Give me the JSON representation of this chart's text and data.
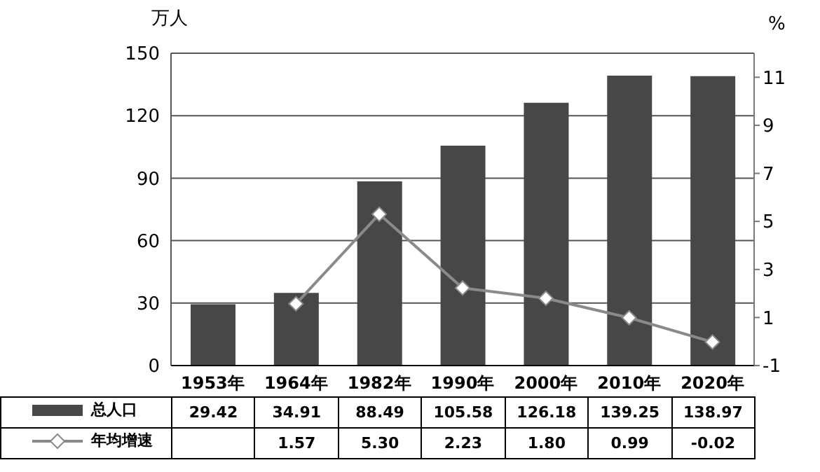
{
  "chart_data": {
    "type": "bar",
    "categories": [
      "1953年",
      "1964年",
      "1982年",
      "1990年",
      "2000年",
      "2010年",
      "2020年"
    ],
    "series": [
      {
        "name": "总人口",
        "color": "#474747",
        "values": [
          29.42,
          34.91,
          88.49,
          105.58,
          126.18,
          139.25,
          138.97
        ],
        "value_labels": [
          "29.42",
          "34.91",
          "88.49",
          "105.58",
          "126.18",
          "139.25",
          "138.97"
        ]
      },
      {
        "name": "年均增速",
        "type": "line",
        "axis": "y2",
        "color": "#8a8a8a",
        "marker": "diamond",
        "values": [
          null,
          1.57,
          5.3,
          2.23,
          1.8,
          0.99,
          -0.02
        ],
        "value_labels": [
          null,
          "1.57",
          "5.30",
          "2.23",
          "1.80",
          "0.99",
          "-0.02"
        ]
      }
    ],
    "ylabel": "万人",
    "y2label": "%",
    "ylim": [
      0,
      150
    ],
    "yticks": [
      0,
      30,
      60,
      90,
      120,
      150
    ],
    "y2lim": [
      -1,
      12
    ],
    "y2ticks": [
      -1,
      1,
      3,
      5,
      7,
      9,
      11
    ],
    "grid": "y",
    "legend": "bottom"
  }
}
